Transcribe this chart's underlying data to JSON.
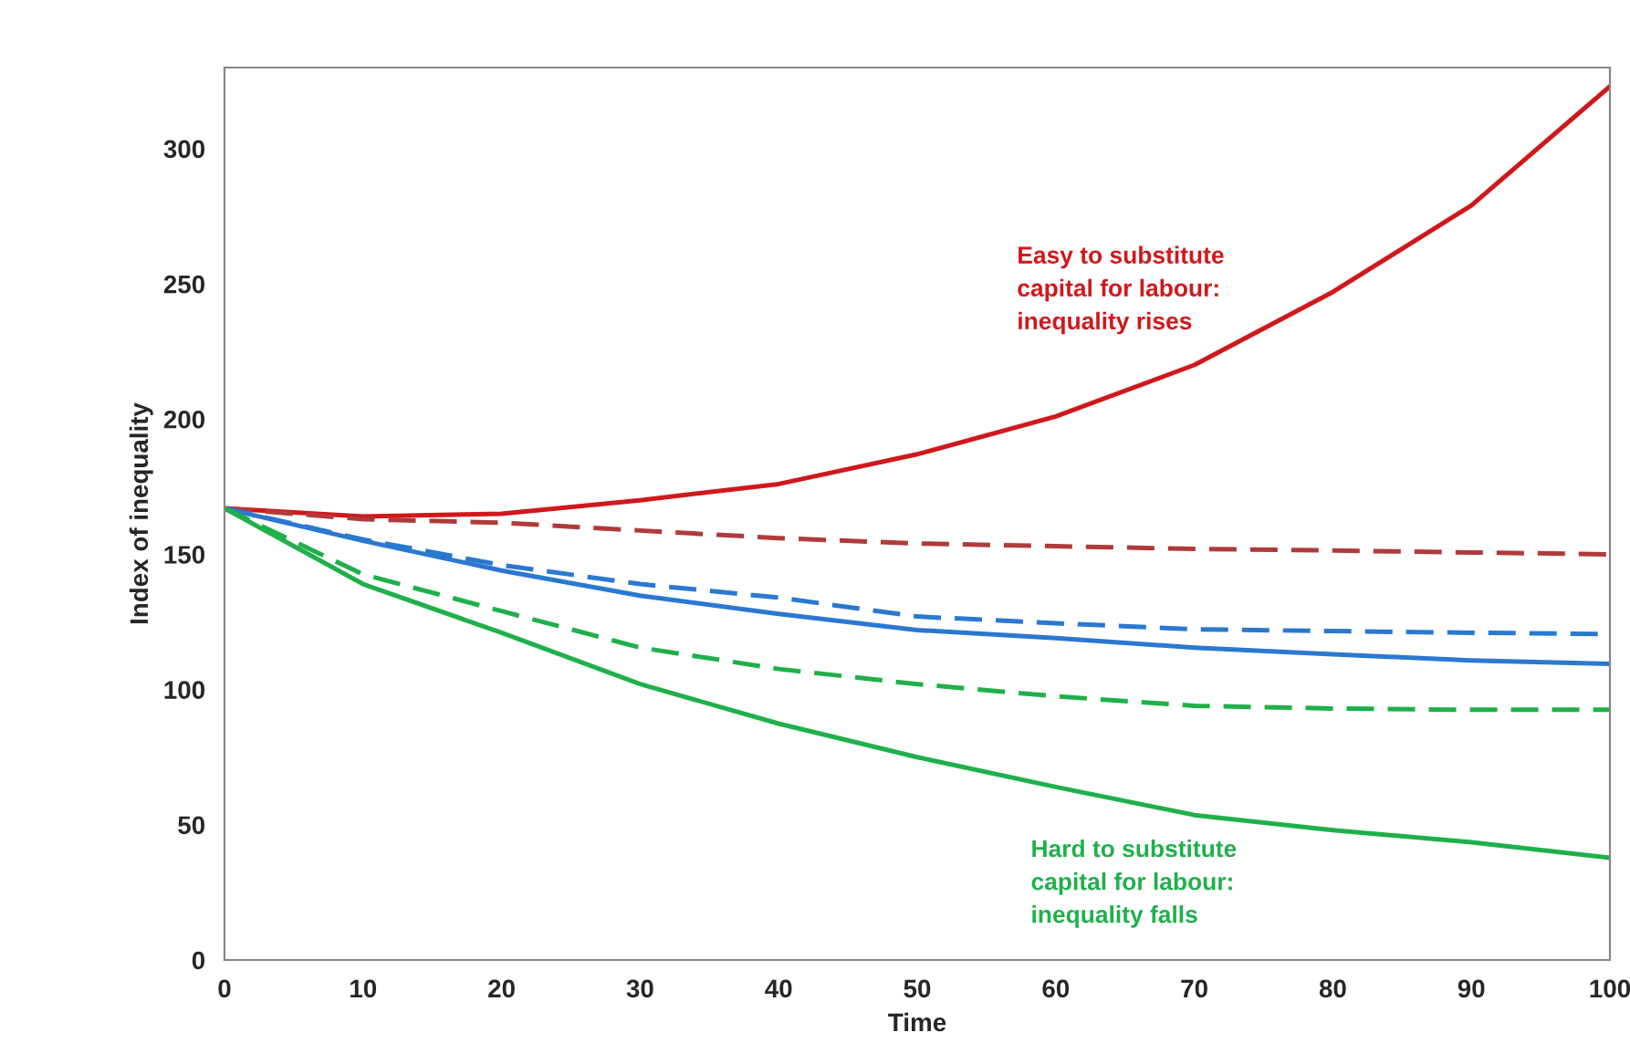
{
  "chart_data": {
    "type": "line",
    "xlabel": "Time",
    "ylabel": "Index of inequality",
    "x": [
      0,
      10,
      20,
      30,
      40,
      50,
      60,
      70,
      80,
      90,
      100
    ],
    "series": [
      {
        "color": "#d0181c",
        "line_style": "solid",
        "values": [
          167,
          164,
          165,
          170,
          176,
          187,
          201,
          220,
          247,
          279,
          323
        ]
      },
      {
        "color": "#b03a3a",
        "line_style": "dashed",
        "values": [
          167,
          163,
          161.7,
          158.8,
          156,
          154,
          153,
          152,
          151.4,
          150.7,
          150
        ]
      },
      {
        "color": "#2a78d0",
        "line_style": "dashed",
        "values": [
          167,
          155.5,
          146,
          139,
          134,
          127,
          124.5,
          122.3,
          121.6,
          121,
          120.5
        ]
      },
      {
        "color": "#2a78d0",
        "line_style": "solid",
        "values": [
          167,
          155,
          144,
          134.7,
          128,
          122,
          119,
          115.5,
          113,
          110.8,
          109.5
        ]
      },
      {
        "color": "#1fb04a",
        "line_style": "dashed",
        "values": [
          167,
          142.6,
          129,
          115.5,
          107.6,
          102,
          97.5,
          94,
          93,
          92.5,
          92.5
        ]
      },
      {
        "color": "#1fb04a",
        "line_style": "solid",
        "values": [
          167,
          139,
          121,
          102,
          87.4,
          75,
          64,
          53.6,
          48,
          43.5,
          37.8
        ]
      }
    ],
    "annotations": [
      "Easy to substitute\ncapital for labour:\ninequality rises",
      "Hard to substitute\ncapital for labour:\ninequality falls"
    ],
    "xlim": [
      0,
      100
    ],
    "xticks": [
      0,
      10,
      20,
      30,
      40,
      50,
      60,
      70,
      80,
      90,
      100
    ],
    "ylim": [
      0,
      330
    ],
    "yticks": [
      0,
      50,
      100,
      150,
      200,
      250,
      300
    ],
    "grid": false,
    "legend": false
  }
}
